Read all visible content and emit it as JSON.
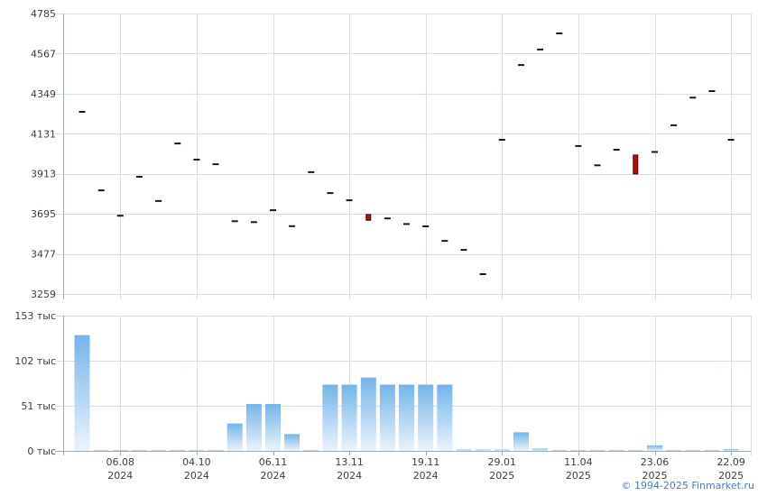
{
  "footer": {
    "copyright": "© 1994-2025 Finmarket.ru"
  },
  "colors": {
    "background": "#ffffff",
    "grid": "#d7dee1",
    "axis": "#a2adb3",
    "text": "#3c4043",
    "price_mark": "#1a1a1a",
    "candle_down_fill": "#d40000",
    "candle_border": "#1a1a1a",
    "bar_gradient_top": "#74b4ea",
    "bar_gradient_bottom": "#ecf3fb",
    "copyright": "#4a7ac9"
  },
  "x_axis": {
    "tick_point_indices": [
      2,
      6,
      10,
      14,
      18,
      22,
      26,
      30,
      34
    ],
    "tick_labels": [
      {
        "date": "06.08",
        "year": "2024"
      },
      {
        "date": "04.10",
        "year": "2024"
      },
      {
        "date": "06.11",
        "year": "2024"
      },
      {
        "date": "13.11",
        "year": "2024"
      },
      {
        "date": "19.11",
        "year": "2024"
      },
      {
        "date": "29.01",
        "year": "2025"
      },
      {
        "date": "11.04",
        "year": "2025"
      },
      {
        "date": "23.06",
        "year": "2025"
      },
      {
        "date": "22.09",
        "year": "2025"
      }
    ]
  },
  "chart_data": [
    {
      "type": "scatter",
      "panel": "price",
      "marker": "dash",
      "grid": true,
      "ylim": [
        3259,
        4785
      ],
      "y_ticks": [
        4785,
        4567,
        4349,
        4131,
        3913,
        3695,
        3477,
        3259
      ],
      "points": [
        4250,
        3823,
        3685,
        3897,
        3765,
        4078,
        3990,
        3965,
        3655,
        3650,
        3715,
        3628,
        3922,
        3808,
        3769,
        {
          "type": "candle",
          "open": 3692,
          "close": 3660,
          "direction": "down"
        },
        3670,
        3640,
        3627,
        3548,
        3499,
        3367,
        4098,
        4505,
        4589,
        4677,
        4064,
        3959,
        4044,
        {
          "type": "candle",
          "open": 4015,
          "close": 3912,
          "direction": "down"
        },
        4032,
        4177,
        4327,
        4363,
        4098
      ]
    },
    {
      "type": "bar",
      "panel": "volume",
      "unit": "тыс",
      "grid": true,
      "ylim": [
        0,
        153
      ],
      "y_ticks": [
        {
          "value": 153,
          "label": "153 тыс"
        },
        {
          "value": 102,
          "label": "102 тыс"
        },
        {
          "value": 51,
          "label": "51 тыс"
        },
        {
          "value": 0,
          "label": "0 тыс"
        }
      ],
      "values_thousands": [
        131,
        1,
        1,
        1,
        1,
        1,
        1,
        1,
        31,
        53,
        53,
        19,
        1,
        75,
        75,
        83,
        75,
        75,
        75,
        75,
        1.5,
        1.5,
        1.5,
        21,
        2.5,
        1,
        1,
        1,
        1,
        1,
        6.3,
        1,
        1,
        1,
        2
      ]
    }
  ]
}
